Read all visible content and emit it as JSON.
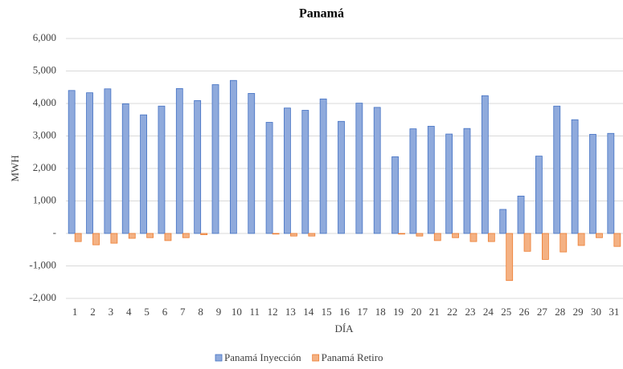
{
  "chart_data": {
    "type": "bar",
    "title": "Panamá",
    "x_label": "DÍA",
    "y_label": "MWH",
    "categories": [
      "1",
      "2",
      "3",
      "4",
      "5",
      "6",
      "7",
      "8",
      "9",
      "10",
      "11",
      "12",
      "13",
      "14",
      "15",
      "16",
      "17",
      "18",
      "19",
      "20",
      "21",
      "22",
      "23",
      "24",
      "25",
      "26",
      "27",
      "28",
      "29",
      "30",
      "31"
    ],
    "series": [
      {
        "name": "Panamá Inyección",
        "color": "#8faadc",
        "edge": "#4472c4",
        "values": [
          4400,
          4330,
          4450,
          3990,
          3650,
          3920,
          4460,
          4090,
          4580,
          4710,
          4310,
          3420,
          3860,
          3790,
          4140,
          3450,
          4010,
          3880,
          2360,
          3220,
          3300,
          3060,
          3230,
          4240,
          740,
          1150,
          2380,
          3920,
          3500,
          3050,
          3080
        ]
      },
      {
        "name": "Panamá Retiro",
        "color": "#f4b183",
        "edge": "#ed7d31",
        "values": [
          -250,
          -350,
          -300,
          -150,
          -130,
          -220,
          -130,
          -40,
          0,
          0,
          0,
          -20,
          -80,
          -80,
          0,
          0,
          0,
          0,
          -20,
          -80,
          -220,
          -130,
          -250,
          -250,
          -1450,
          -550,
          -800,
          -570,
          -370,
          -130,
          -400
        ]
      }
    ],
    "ylim": [
      -2000,
      6000
    ],
    "yticks": [
      {
        "value": -2000,
        "label": "-2,000"
      },
      {
        "value": -1000,
        "label": "-1,000"
      },
      {
        "value": 0,
        "label": "-"
      },
      {
        "value": 1000,
        "label": "1,000"
      },
      {
        "value": 2000,
        "label": "2,000"
      },
      {
        "value": 3000,
        "label": "3,000"
      },
      {
        "value": 4000,
        "label": "4,000"
      },
      {
        "value": 5000,
        "label": "5,000"
      },
      {
        "value": 6000,
        "label": "6,000"
      }
    ],
    "grid": true
  }
}
